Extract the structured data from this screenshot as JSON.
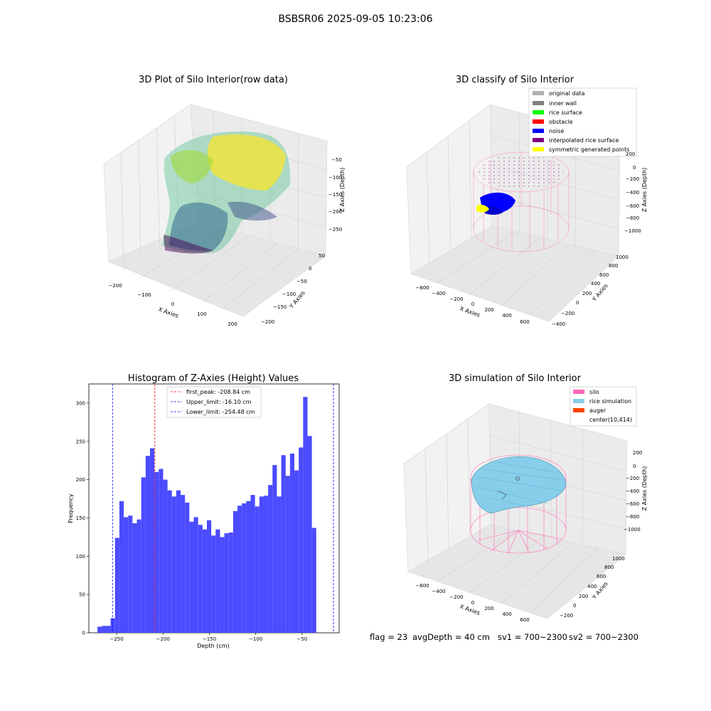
{
  "figure": {
    "title": "BSBSR06 2025-09-05 10:23:06",
    "footer": {
      "flag": "flag = 23",
      "avg_depth": "avgDepth = 40 cm",
      "sv1": "sv1 = 700~2300",
      "sv2": "sv2 = 700~2300"
    }
  },
  "colors": {
    "histogram_bar": "#4b4bff",
    "first_peak_line": "#ff0000",
    "limit_lines": "#0000ff",
    "silo_mesh": "#ff69b4",
    "rice_simulation": "#87ceeb",
    "auger": "#ff4500",
    "noise": "#0000ff",
    "symmetric_points": "#ffff00"
  },
  "chart_data": [
    {
      "type": "scatter",
      "projection": "3d",
      "title": "3D Plot of Silo Interior(row data)",
      "xlabel": "X Axies",
      "ylabel": "Y Axies",
      "zlabel": "Z Axies (Depth)",
      "x_ticks": [
        "−200",
        "−100",
        "0",
        "100",
        "200"
      ],
      "y_ticks": [
        "−200",
        "−150",
        "−100",
        "−50",
        "0",
        "50"
      ],
      "z_ticks": [
        "−50",
        "−100",
        "−150",
        "−200",
        "−250"
      ],
      "colormap": "viridis",
      "legend": "none"
    },
    {
      "type": "scatter",
      "projection": "3d",
      "title": "3D classify of Silo Interior",
      "xlabel": "X Axies",
      "ylabel": "Y Axies",
      "zlabel": "Z Axies (Depth)",
      "x_ticks": [
        "−600",
        "−400",
        "−200",
        "0",
        "200",
        "400",
        "600"
      ],
      "y_ticks": [
        "−400",
        "−200",
        "0",
        "200",
        "400",
        "600",
        "800",
        "1000"
      ],
      "z_ticks": [
        "200",
        "0",
        "−200",
        "−400",
        "−600",
        "−800",
        "−1000"
      ],
      "legend_position": "top-right",
      "legend": [
        {
          "label": "original data",
          "color": "#b0b0b0"
        },
        {
          "label": "inner wall",
          "color": "#808080"
        },
        {
          "label": "rice surface",
          "color": "#00ff00"
        },
        {
          "label": "obstacle",
          "color": "#ff0000"
        },
        {
          "label": "noise",
          "color": "#0000ff"
        },
        {
          "label": "interpolated rice surface",
          "color": "#800080"
        },
        {
          "label": "symmetric generated points",
          "color": "#ffff00"
        }
      ]
    },
    {
      "type": "bar",
      "title": "Histogram of Z-Axies (Height) Values",
      "xlabel": "Depth (cm)",
      "ylabel": "Frequency",
      "xlim": [
        -280,
        -10
      ],
      "ylim": [
        0,
        325
      ],
      "x_ticks": [
        -250,
        -200,
        -150,
        -100,
        -50
      ],
      "x_tick_labels": [
        "−250",
        "−200",
        "−150",
        "−100",
        "−50"
      ],
      "y_ticks": [
        0,
        50,
        100,
        150,
        200,
        250,
        300
      ],
      "bin_start": -270.7,
      "bin_width": 4.72,
      "values": [
        8,
        9,
        9,
        19,
        124,
        172,
        151,
        153,
        143,
        148,
        203,
        231,
        241,
        210,
        214,
        200,
        186,
        178,
        186,
        180,
        170,
        145,
        151,
        141,
        135,
        147,
        127,
        135,
        125,
        130,
        131,
        159,
        166,
        169,
        172,
        180,
        165,
        178,
        179,
        193,
        219,
        178,
        232,
        205,
        234,
        212,
        242,
        308,
        257,
        137
      ],
      "lines": [
        {
          "label": "first_peak: -208.84 cm",
          "x": -208.84,
          "color": "#ff0000"
        },
        {
          "label": "Upper_limit: -16.10 cm",
          "x": -16.1,
          "color": "#0000ff"
        },
        {
          "label": "Lower_limit: -254.48 cm",
          "x": -254.48,
          "color": "#0000ff"
        }
      ],
      "legend_position": "top-center"
    },
    {
      "type": "surface",
      "projection": "3d",
      "title": "3D simulation of Silo Interior",
      "xlabel": "X Axies",
      "ylabel": "Y Axies",
      "zlabel": "Z Axies (Depth)",
      "x_ticks": [
        "−600",
        "−400",
        "−200",
        "0",
        "200",
        "400",
        "600"
      ],
      "y_ticks": [
        "−200",
        "0",
        "200",
        "400",
        "600",
        "800",
        "1000"
      ],
      "z_ticks": [
        "200",
        "0",
        "−200",
        "−400",
        "−600",
        "−800",
        "−1000"
      ],
      "legend_position": "top-right",
      "legend": [
        {
          "label": "silo",
          "color": "#ff69b4"
        },
        {
          "label": "rice simulation",
          "color": "#87ceeb"
        },
        {
          "label": "auger",
          "color": "#ff4500"
        },
        {
          "label": "center(10,414)",
          "color": ""
        }
      ]
    }
  ]
}
